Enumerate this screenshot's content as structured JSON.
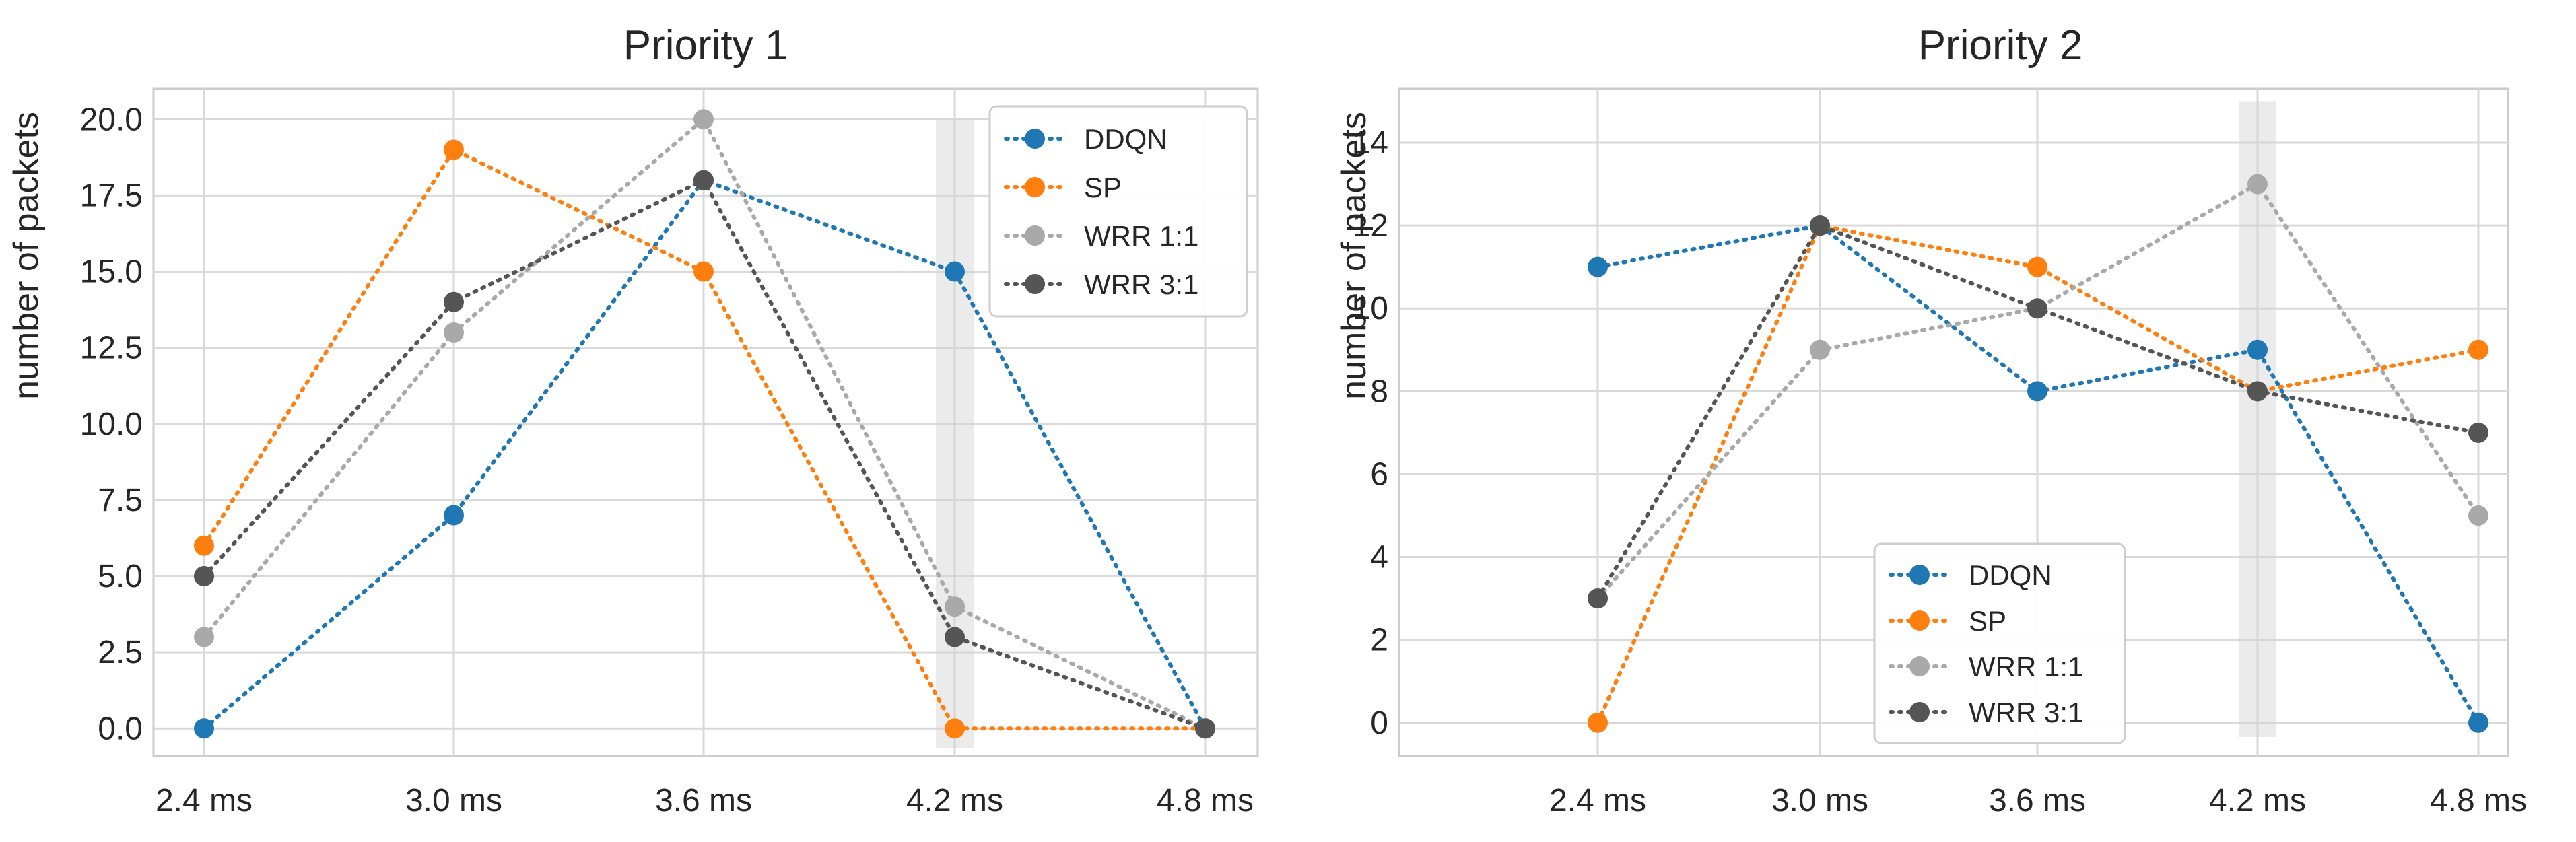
{
  "chart_data": [
    {
      "type": "line",
      "title": "Priority 1",
      "xlabel": "",
      "ylabel": "number of packets",
      "categories": [
        "2.4 ms",
        "3.0 ms",
        "3.6 ms",
        "4.2 ms",
        "4.8 ms"
      ],
      "ylim": [
        -0.9,
        21.0
      ],
      "yticks": [
        0.0,
        2.5,
        5.0,
        7.5,
        10.0,
        12.5,
        15.0,
        17.5,
        20.0
      ],
      "ytick_labels": [
        "0.0",
        "2.5",
        "5.0",
        "7.5",
        "10.0",
        "12.5",
        "15.0",
        "17.5",
        "20.0"
      ],
      "highlight_category": "4.2 ms",
      "grid": true,
      "legend_position": "top-right",
      "series": [
        {
          "name": "DDQN",
          "color": "#1f77b4",
          "values": [
            0,
            7,
            18,
            15,
            0
          ]
        },
        {
          "name": "SP",
          "color": "#ff7f0e",
          "values": [
            6,
            19,
            15,
            0,
            0
          ]
        },
        {
          "name": "WRR 1:1",
          "color": "#a9a9a9",
          "values": [
            3,
            13,
            20,
            4,
            0
          ]
        },
        {
          "name": "WRR 3:1",
          "color": "#555555",
          "values": [
            5,
            14,
            18,
            3,
            0
          ]
        }
      ]
    },
    {
      "type": "line",
      "title": "Priority 2",
      "xlabel": "",
      "ylabel": "number of packets",
      "categories": [
        "2.4 ms",
        "3.0 ms",
        "3.6 ms",
        "4.2 ms",
        "4.8 ms"
      ],
      "ylim": [
        -0.8,
        15.3
      ],
      "yticks": [
        0,
        2,
        4,
        6,
        8,
        10,
        12,
        14
      ],
      "ytick_labels": [
        "0",
        "2",
        "4",
        "6",
        "8",
        "10",
        "12",
        "14"
      ],
      "highlight_category": "4.2 ms",
      "grid": true,
      "legend_position": "bottom-center",
      "series": [
        {
          "name": "DDQN",
          "color": "#1f77b4",
          "values": [
            11,
            12,
            8,
            9,
            0
          ]
        },
        {
          "name": "SP",
          "color": "#ff7f0e",
          "values": [
            0,
            12,
            11,
            8,
            9
          ]
        },
        {
          "name": "WRR 1:1",
          "color": "#a9a9a9",
          "values": [
            3,
            9,
            10,
            13,
            5
          ]
        },
        {
          "name": "WRR 3:1",
          "color": "#555555",
          "values": [
            3,
            12,
            10,
            8,
            7
          ]
        }
      ]
    }
  ]
}
